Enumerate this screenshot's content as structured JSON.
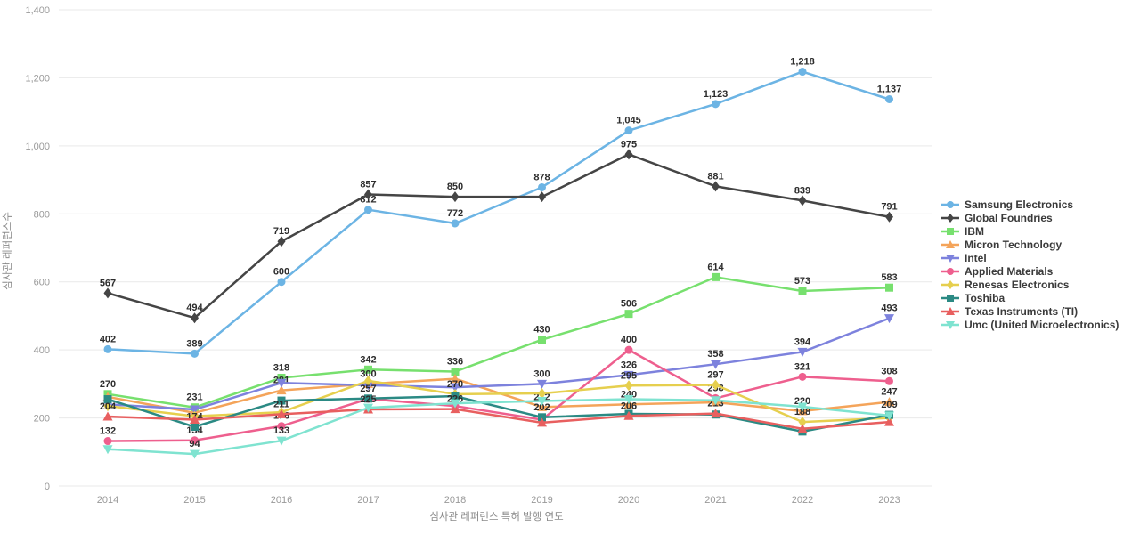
{
  "chart_data": {
    "type": "line",
    "title": "",
    "xlabel": "심사관 레퍼런스 특허 발행 연도",
    "ylabel": "심사관 레퍼런스수",
    "x": [
      "2014",
      "2015",
      "2016",
      "2017",
      "2018",
      "2019",
      "2020",
      "2021",
      "2022",
      "2023"
    ],
    "ylim": [
      0,
      1400
    ],
    "ytick_step": 200,
    "grid": true,
    "legend_position": "right",
    "text_color": "#999999",
    "grid_color": "#e9e9e9",
    "series": [
      {
        "name": "Samsung Electronics",
        "color": "#6cb4e4",
        "marker": "circle",
        "values": [
          402,
          389,
          600,
          812,
          772,
          878,
          1045,
          1123,
          1218,
          1137
        ],
        "labels": [
          "402",
          "389",
          "600",
          "812",
          "772",
          "878",
          "1,045",
          "1,123",
          "1,218",
          "1,137"
        ]
      },
      {
        "name": "Global Foundries",
        "color": "#454545",
        "marker": "diamond",
        "values": [
          567,
          494,
          719,
          857,
          850,
          850,
          975,
          881,
          839,
          791
        ],
        "labels": [
          "567",
          "494",
          "719",
          "857",
          "850",
          "",
          "975",
          "881",
          "839",
          "791"
        ]
      },
      {
        "name": "IBM",
        "color": "#77e06e",
        "marker": "square",
        "values": [
          270,
          231,
          318,
          342,
          336,
          430,
          506,
          614,
          573,
          583
        ],
        "labels": [
          "270",
          "231",
          "318",
          "342",
          "336",
          "430",
          "506",
          "614",
          "573",
          "583"
        ]
      },
      {
        "name": "Micron Technology",
        "color": "#f4a45a",
        "marker": "triangle-up",
        "values": [
          262,
          215,
          281,
          300,
          315,
          232,
          240,
          246,
          220,
          247
        ],
        "labels": [
          "",
          "",
          "281",
          "300",
          "",
          "232",
          "240",
          "",
          "220",
          "247"
        ]
      },
      {
        "name": "Intel",
        "color": "#7d82dd",
        "marker": "triangle-down",
        "values": [
          240,
          225,
          303,
          296,
          290,
          300,
          326,
          358,
          394,
          493
        ],
        "labels": [
          "",
          "",
          "",
          "",
          "",
          "300",
          "326",
          "358",
          "394",
          "493"
        ]
      },
      {
        "name": "Applied Materials",
        "color": "#ee5f8e",
        "marker": "circle",
        "values": [
          132,
          134,
          176,
          256,
          235,
          195,
          400,
          258,
          321,
          308
        ],
        "labels": [
          "132",
          "134",
          "176",
          "",
          "",
          "",
          "400",
          "258",
          "321",
          "308"
        ]
      },
      {
        "name": "Renesas Electronics",
        "color": "#e6cf4e",
        "marker": "diamond",
        "values": [
          235,
          205,
          217,
          309,
          270,
          272,
          295,
          297,
          188,
          200
        ],
        "labels": [
          "",
          "",
          "",
          "",
          "270",
          "",
          "295",
          "297",
          "188",
          ""
        ]
      },
      {
        "name": "Toshiba",
        "color": "#2b8a84",
        "marker": "square",
        "values": [
          255,
          174,
          251,
          257,
          264,
          202,
          212,
          210,
          160,
          209
        ],
        "labels": [
          "",
          "174",
          "",
          "257",
          "",
          "202",
          "",
          "",
          "",
          "209"
        ]
      },
      {
        "name": "Texas Instruments (TI)",
        "color": "#e85f5f",
        "marker": "triangle-up",
        "values": [
          204,
          195,
          211,
          225,
          226,
          186,
          206,
          213,
          168,
          188
        ],
        "labels": [
          "204",
          "",
          "211",
          "225",
          "226",
          "",
          "206",
          "213",
          "",
          ""
        ]
      },
      {
        "name": "Umc (United Microelectronics)",
        "color": "#7fe3d0",
        "marker": "triangle-down",
        "values": [
          108,
          94,
          133,
          230,
          243,
          250,
          255,
          252,
          233,
          207
        ],
        "labels": [
          "",
          "94",
          "133",
          "",
          "",
          "",
          "",
          "",
          "",
          ""
        ]
      }
    ]
  }
}
